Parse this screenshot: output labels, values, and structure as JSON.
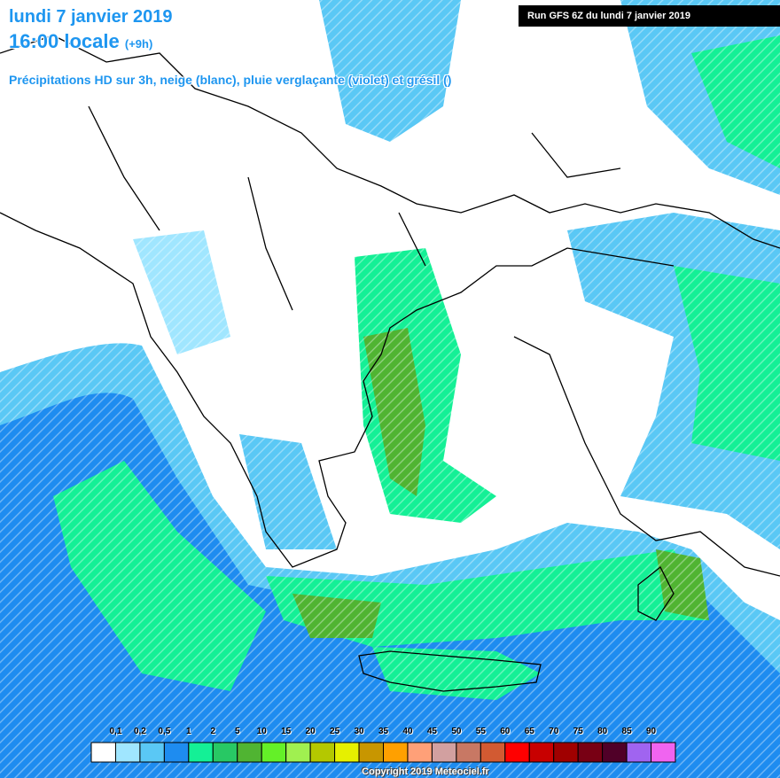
{
  "header": {
    "date": "lundi 7 janvier 2019",
    "time": "16:00 locale",
    "offset": "(+9h)",
    "description": "Précipitations HD sur 3h, neige (blanc), pluie verglaçante (violet) et grésil ()"
  },
  "run": "Run GFS 6Z du lundi 7 janvier 2019",
  "legend": {
    "labels": [
      "0,1",
      "0,2",
      "0,5",
      "1",
      "2",
      "5",
      "10",
      "15",
      "20",
      "25",
      "30",
      "35",
      "40",
      "45",
      "50",
      "55",
      "60",
      "65",
      "70",
      "75",
      "80",
      "85",
      "90"
    ],
    "colors": [
      "#ffffff",
      "#a0e6ff",
      "#5ac8f5",
      "#1e8cf0",
      "#14f096",
      "#28c864",
      "#50b432",
      "#64f028",
      "#a0f050",
      "#b4c800",
      "#e6f000",
      "#c89600",
      "#ffa000",
      "#ffa078",
      "#d2a0a0",
      "#c87864",
      "#d25a32",
      "#ff0000",
      "#c80000",
      "#a00000",
      "#780014",
      "#500028",
      "#a064f0",
      "#f064f0"
    ]
  },
  "copyright": "Copyright 2019 Meteociel.fr"
}
